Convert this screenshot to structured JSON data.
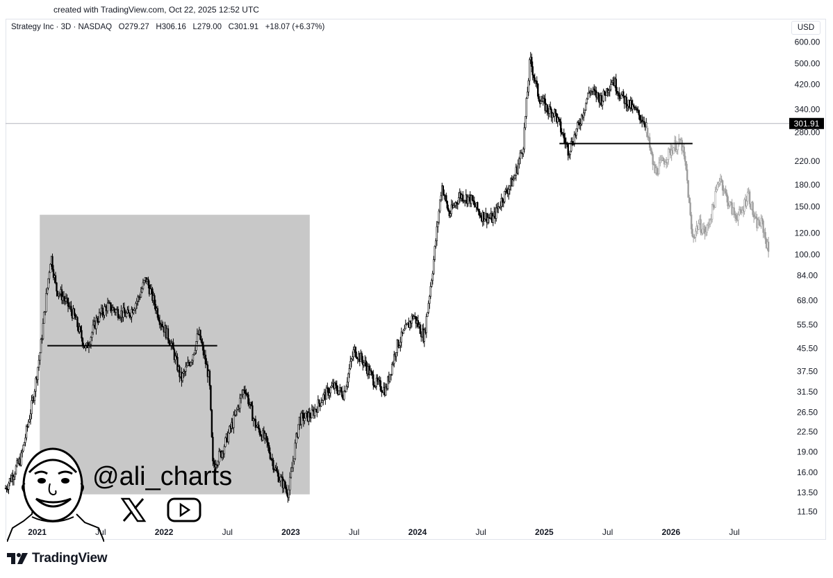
{
  "header": {
    "created_text": "created with TradingView.com, Oct 22, 2025 12:52 UTC"
  },
  "legend": {
    "symbol": "Strategy Inc · 3D · NASDAQ",
    "open": "O279.27",
    "high": "H306.16",
    "low": "L279.00",
    "close": "C301.91",
    "change": "+18.07 (+6.37%)"
  },
  "currency_label": "USD",
  "watermark": {
    "handle": "@ali_charts"
  },
  "brand": {
    "name": "TradingView"
  },
  "colors": {
    "candles": "#000000",
    "projection": "#9e9e9e",
    "highlight_box": "#c8c8c8",
    "price_label_bg": "#000000",
    "price_line": "#b2b5be"
  },
  "chart_data": {
    "type": "line",
    "title": "Strategy Inc · 3D · NASDAQ",
    "y_scale": "log",
    "ylim": [
      10.5,
      630
    ],
    "y_ticks": [
      "600.00",
      "500.00",
      "420.00",
      "340.00",
      "280.00",
      "220.00",
      "180.00",
      "150.00",
      "120.00",
      "100.00",
      "84.00",
      "68.00",
      "55.50",
      "45.50",
      "37.50",
      "31.50",
      "26.50",
      "22.50",
      "19.00",
      "16.00",
      "13.50",
      "11.50"
    ],
    "x_ticks": [
      {
        "label": "2021",
        "t": 2021.0,
        "major": true
      },
      {
        "label": "Jul",
        "t": 2021.5,
        "major": false
      },
      {
        "label": "2022",
        "t": 2022.0,
        "major": true
      },
      {
        "label": "Jul",
        "t": 2022.5,
        "major": false
      },
      {
        "label": "2023",
        "t": 2023.0,
        "major": true
      },
      {
        "label": "Jul",
        "t": 2023.5,
        "major": false
      },
      {
        "label": "2024",
        "t": 2024.0,
        "major": true
      },
      {
        "label": "Jul",
        "t": 2024.5,
        "major": false
      },
      {
        "label": "2025",
        "t": 2025.0,
        "major": true
      },
      {
        "label": "Jul",
        "t": 2025.5,
        "major": false
      },
      {
        "label": "2026",
        "t": 2026.0,
        "major": true
      },
      {
        "label": "Jul",
        "t": 2026.5,
        "major": false
      }
    ],
    "last_price": "301.91",
    "last_price_value": 301.91,
    "series": [
      {
        "kind": "price",
        "points": [
          [
            "2020-10-01",
            14
          ],
          [
            "2020-11-15",
            18
          ],
          [
            "2020-12-20",
            30
          ],
          [
            "2021-01-10",
            45
          ],
          [
            "2021-02-10",
            100
          ],
          [
            "2021-02-25",
            75
          ],
          [
            "2021-03-15",
            70
          ],
          [
            "2021-04-15",
            60
          ],
          [
            "2021-05-20",
            45
          ],
          [
            "2021-06-20",
            58
          ],
          [
            "2021-07-20",
            65
          ],
          [
            "2021-08-20",
            62
          ],
          [
            "2021-09-20",
            60
          ],
          [
            "2021-10-20",
            70
          ],
          [
            "2021-11-10",
            82
          ],
          [
            "2021-12-20",
            58
          ],
          [
            "2022-01-20",
            48
          ],
          [
            "2022-02-20",
            35
          ],
          [
            "2022-03-20",
            42
          ],
          [
            "2022-04-10",
            52
          ],
          [
            "2022-05-10",
            35
          ],
          [
            "2022-05-20",
            17
          ],
          [
            "2022-06-15",
            19
          ],
          [
            "2022-07-20",
            25
          ],
          [
            "2022-08-20",
            33
          ],
          [
            "2022-09-20",
            24
          ],
          [
            "2022-10-20",
            21
          ],
          [
            "2022-11-20",
            16
          ],
          [
            "2022-12-25",
            13.5
          ],
          [
            "2023-01-25",
            25
          ],
          [
            "2023-03-01",
            26
          ],
          [
            "2023-04-01",
            30
          ],
          [
            "2023-05-01",
            33
          ],
          [
            "2023-06-01",
            31
          ],
          [
            "2023-07-01",
            45
          ],
          [
            "2023-08-01",
            40
          ],
          [
            "2023-09-01",
            34
          ],
          [
            "2023-10-01",
            32
          ],
          [
            "2023-11-01",
            46
          ],
          [
            "2023-12-20",
            60
          ],
          [
            "2024-01-20",
            50
          ],
          [
            "2024-02-15",
            90
          ],
          [
            "2024-03-10",
            180
          ],
          [
            "2024-04-01",
            140
          ],
          [
            "2024-05-01",
            165
          ],
          [
            "2024-06-01",
            160
          ],
          [
            "2024-07-01",
            140
          ],
          [
            "2024-08-05",
            135
          ],
          [
            "2024-09-01",
            160
          ],
          [
            "2024-10-05",
            190
          ],
          [
            "2024-11-01",
            250
          ],
          [
            "2024-11-21",
            520
          ],
          [
            "2024-12-15",
            380
          ],
          [
            "2025-01-10",
            340
          ],
          [
            "2025-02-01",
            330
          ],
          [
            "2025-03-10",
            240
          ],
          [
            "2025-04-10",
            300
          ],
          [
            "2025-05-10",
            400
          ],
          [
            "2025-06-15",
            370
          ],
          [
            "2025-07-15",
            440
          ],
          [
            "2025-08-10",
            380
          ],
          [
            "2025-09-15",
            340
          ],
          [
            "2025-10-22",
            301.91
          ]
        ]
      },
      {
        "kind": "projection",
        "points": [
          [
            "2025-10-22",
            280
          ],
          [
            "2025-11-15",
            200
          ],
          [
            "2025-12-15",
            225
          ],
          [
            "2026-01-10",
            250
          ],
          [
            "2026-02-01",
            255
          ],
          [
            "2026-02-15",
            200
          ],
          [
            "2026-03-01",
            115
          ],
          [
            "2026-03-20",
            130
          ],
          [
            "2026-04-10",
            120
          ],
          [
            "2026-05-01",
            150
          ],
          [
            "2026-05-20",
            195
          ],
          [
            "2026-06-10",
            160
          ],
          [
            "2026-07-01",
            140
          ],
          [
            "2026-07-20",
            140
          ],
          [
            "2026-08-10",
            170
          ],
          [
            "2026-09-01",
            130
          ],
          [
            "2026-09-20",
            130
          ],
          [
            "2026-10-10",
            100
          ]
        ]
      }
    ],
    "annotations": [
      {
        "type": "shaded_box",
        "t0": 2021.02,
        "t1": 2023.15,
        "y_low": 13.3,
        "y_high": 140
      },
      {
        "type": "hline",
        "t0": 2021.08,
        "t1": 2022.42,
        "y": 46.5
      },
      {
        "type": "hline",
        "t0": 2025.12,
        "t1": 2026.17,
        "y": 255
      }
    ]
  }
}
